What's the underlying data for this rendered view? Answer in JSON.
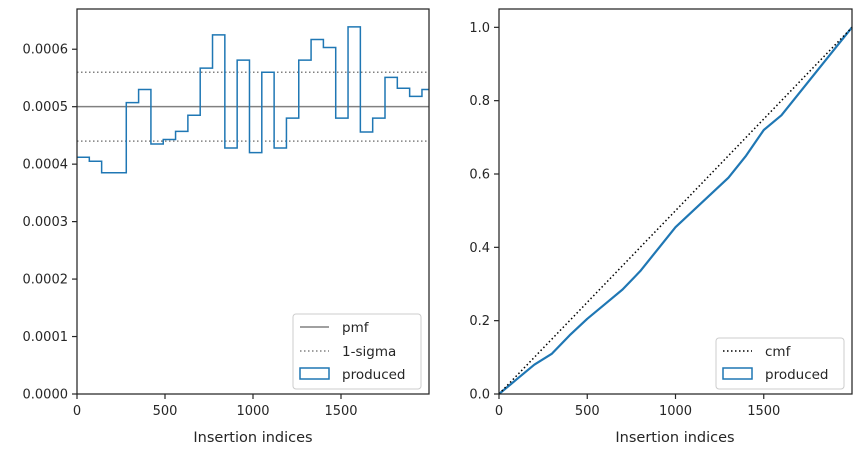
{
  "chart_data": [
    {
      "type": "line",
      "panel": "left",
      "xlabel": "Insertion indices",
      "ylabel": "",
      "xlim": [
        0,
        2000
      ],
      "ylim": [
        0,
        0.00067
      ],
      "xticks": [
        0,
        500,
        1000,
        1500
      ],
      "xtick_labels": [
        "0",
        "500",
        "1000",
        "1500"
      ],
      "yticks": [
        0,
        0.0001,
        0.0002,
        0.0003,
        0.0004,
        0.0005,
        0.0006
      ],
      "ytick_labels": [
        "0.0000",
        "0.0001",
        "0.0002",
        "0.0003",
        "0.0004",
        "0.0005",
        "0.0006"
      ],
      "pmf": 0.0005,
      "sigma_band": [
        0.00044,
        0.00056
      ],
      "bin_edges": [
        0,
        70,
        140,
        280,
        350,
        420,
        490,
        560,
        630,
        700,
        770,
        840,
        910,
        980,
        1050,
        1120,
        1190,
        1260,
        1330,
        1400,
        1470,
        1540,
        1610,
        1680,
        1750,
        1820,
        1890,
        1960,
        2000
      ],
      "values": [
        0.000412,
        0.000405,
        0.000385,
        0.000507,
        0.00053,
        0.000435,
        0.000443,
        0.000457,
        0.000485,
        0.000567,
        0.000625,
        0.000428,
        0.000581,
        0.00042,
        0.00056,
        0.000428,
        0.00048,
        0.000581,
        0.000617,
        0.000603,
        0.00048,
        0.000639,
        0.000456,
        0.00048,
        0.000551,
        0.000532,
        0.000518,
        0.00053
      ],
      "legend": [
        {
          "label": "pmf",
          "style": "solid",
          "color": "#808080"
        },
        {
          "label": "1-sigma",
          "style": "dotted",
          "color": "#808080"
        },
        {
          "label": "produced",
          "style": "box",
          "color": "#1f77b4"
        }
      ],
      "legend_position": "bottom-right",
      "grid": false
    },
    {
      "type": "line",
      "panel": "right",
      "xlabel": "Insertion indices",
      "ylabel": "",
      "xlim": [
        0,
        2000
      ],
      "ylim": [
        0,
        1.05
      ],
      "xticks": [
        0,
        500,
        1000,
        1500
      ],
      "xtick_labels": [
        "0",
        "500",
        "1000",
        "1500"
      ],
      "yticks": [
        0,
        0.2,
        0.4,
        0.6,
        0.8,
        1.0
      ],
      "ytick_labels": [
        "0.0",
        "0.2",
        "0.4",
        "0.6",
        "0.8",
        "1.0"
      ],
      "series": [
        {
          "name": "cmf",
          "style": "dotted",
          "color": "#000000",
          "x": [
            0,
            2000
          ],
          "values": [
            0,
            1.0
          ]
        },
        {
          "name": "produced",
          "style": "step",
          "color": "#1f77b4",
          "x": [
            0,
            100,
            200,
            300,
            400,
            500,
            600,
            700,
            800,
            900,
            1000,
            1100,
            1200,
            1300,
            1400,
            1500,
            1600,
            1700,
            1800,
            1900,
            2000
          ],
          "values": [
            0,
            0.04,
            0.08,
            0.11,
            0.16,
            0.205,
            0.245,
            0.285,
            0.335,
            0.395,
            0.455,
            0.5,
            0.545,
            0.59,
            0.65,
            0.72,
            0.76,
            0.82,
            0.88,
            0.94,
            1.0
          ]
        }
      ],
      "legend": [
        {
          "label": "cmf",
          "style": "dotted",
          "color": "#000000"
        },
        {
          "label": "produced",
          "style": "box",
          "color": "#1f77b4"
        }
      ],
      "legend_position": "bottom-right",
      "grid": false
    }
  ]
}
